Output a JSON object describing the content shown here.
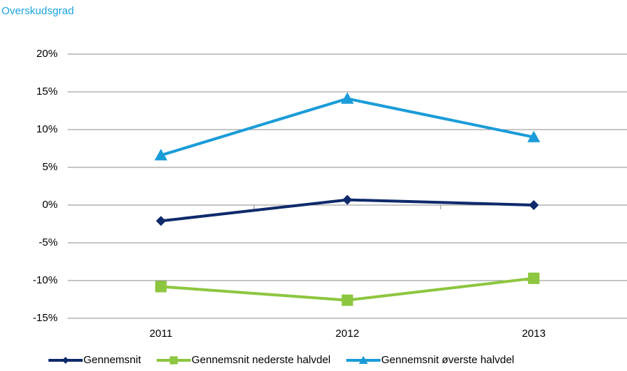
{
  "chart_data": {
    "type": "line",
    "title": "Overskudsgrad",
    "categories": [
      "2011",
      "2012",
      "2013"
    ],
    "series": [
      {
        "name": "Gennemsnit",
        "color": "#0f2a6b",
        "marker": "diamond",
        "values": [
          -2.1,
          0.7,
          0.0
        ]
      },
      {
        "name": "Gennemsnit nederste halvdel",
        "color": "#8dc63f",
        "marker": "square",
        "values": [
          -10.8,
          -12.6,
          -9.7
        ]
      },
      {
        "name": "Gennemsnit øverste halvdel",
        "color": "#1a9cd8",
        "marker": "triangle",
        "values": [
          6.6,
          14.1,
          9.0
        ]
      }
    ],
    "ylim": [
      -15,
      20
    ],
    "yticks": [
      {
        "value": -15,
        "label": "-15%"
      },
      {
        "value": -10,
        "label": "-10%"
      },
      {
        "value": -5,
        "label": "-5%"
      },
      {
        "value": 0,
        "label": "0%"
      },
      {
        "value": 5,
        "label": "5%"
      },
      {
        "value": 10,
        "label": "10%"
      },
      {
        "value": 15,
        "label": "15%"
      },
      {
        "value": 20,
        "label": "20%"
      }
    ],
    "grid": true
  }
}
